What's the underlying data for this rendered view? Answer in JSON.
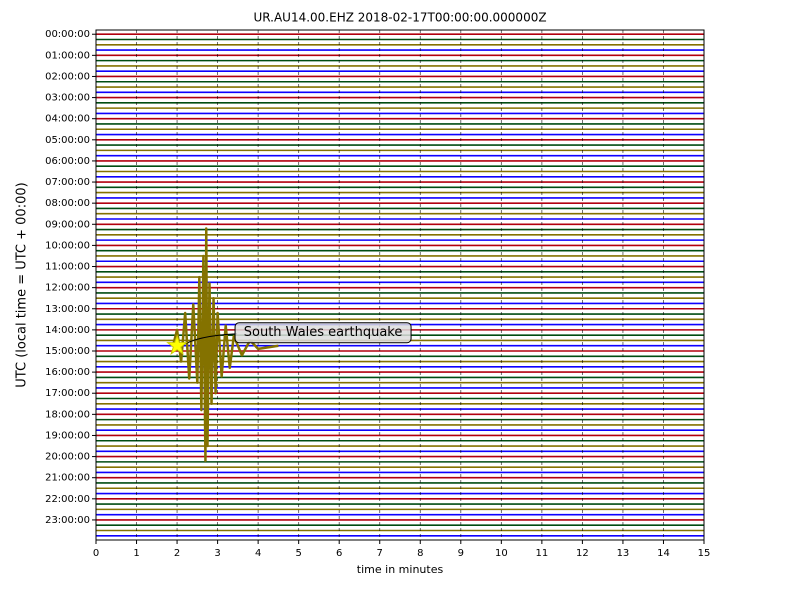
{
  "chart_data": {
    "type": "line",
    "title": "UR.AU14.00.EHZ  2018-02-17T00:00:00.000000Z",
    "xlabel": "time in minutes",
    "ylabel": "UTC (local time = UTC + 00:00)",
    "xlim": [
      0,
      15
    ],
    "xticks": [
      0,
      1,
      2,
      3,
      4,
      5,
      6,
      7,
      8,
      9,
      10,
      11,
      12,
      13,
      14,
      15
    ],
    "ylim": [
      -0.2,
      23.95
    ],
    "yticks": [
      {
        "value": 0,
        "label": "00:00:00"
      },
      {
        "value": 1,
        "label": "01:00:00"
      },
      {
        "value": 2,
        "label": "02:00:00"
      },
      {
        "value": 3,
        "label": "03:00:00"
      },
      {
        "value": 4,
        "label": "04:00:00"
      },
      {
        "value": 5,
        "label": "05:00:00"
      },
      {
        "value": 6,
        "label": "06:00:00"
      },
      {
        "value": 7,
        "label": "07:00:00"
      },
      {
        "value": 8,
        "label": "08:00:00"
      },
      {
        "value": 9,
        "label": "09:00:00"
      },
      {
        "value": 10,
        "label": "10:00:00"
      },
      {
        "value": 11,
        "label": "11:00:00"
      },
      {
        "value": 12,
        "label": "12:00:00"
      },
      {
        "value": 13,
        "label": "13:00:00"
      },
      {
        "value": 14,
        "label": "14:00:00"
      },
      {
        "value": 15,
        "label": "15:00:00"
      },
      {
        "value": 16,
        "label": "16:00:00"
      },
      {
        "value": 17,
        "label": "17:00:00"
      },
      {
        "value": 18,
        "label": "18:00:00"
      },
      {
        "value": 19,
        "label": "19:00:00"
      },
      {
        "value": 20,
        "label": "20:00:00"
      },
      {
        "value": 21,
        "label": "21:00:00"
      },
      {
        "value": 22,
        "label": "22:00:00"
      },
      {
        "value": 23,
        "label": "23:00:00"
      }
    ],
    "grid": true,
    "trace_colors": [
      "#B2000F",
      "#004C12",
      "#847200",
      "#0E01FF"
    ],
    "traces": [
      0,
      0.25,
      0.5,
      0.75,
      1,
      1.25,
      1.5,
      1.75,
      2,
      2.25,
      2.5,
      2.75,
      3,
      3.25,
      3.5,
      3.75,
      4,
      4.25,
      4.5,
      4.75,
      5,
      5.25,
      5.5,
      5.75,
      6,
      6.25,
      6.5,
      6.75,
      7,
      7.25,
      7.5,
      7.75,
      8,
      8.25,
      8.5,
      8.75,
      9,
      9.25,
      9.5,
      9.75,
      10,
      10.25,
      10.5,
      10.75,
      11,
      11.25,
      11.5,
      11.75,
      12,
      12.25,
      12.5,
      12.75,
      13,
      13.25,
      13.5,
      13.75,
      14,
      14.25,
      14.5,
      14.75,
      15,
      15.25,
      15.5,
      15.75,
      16,
      16.25,
      16.5,
      16.75,
      17,
      17.25,
      17.5,
      17.75,
      18,
      18.25,
      18.5,
      18.75,
      19,
      19.25,
      19.5,
      19.75,
      20,
      20.25,
      20.5,
      20.75,
      21,
      21.25,
      21.5,
      21.75,
      22,
      22.25,
      22.5,
      22.75,
      23,
      23.25,
      23.5,
      23.75
    ],
    "series": [
      {
        "color": "#847200",
        "x": [
          1.9,
          2.0,
          2.1,
          2.2,
          2.3,
          2.4,
          2.5,
          2.55,
          2.6,
          2.65,
          2.7,
          2.72,
          2.75,
          2.8,
          2.85,
          2.9,
          2.95,
          3.0,
          3.1,
          3.2,
          3.3,
          3.4,
          3.6,
          3.8,
          4.0,
          4.5
        ],
        "values": [
          14.75,
          14.0,
          15.5,
          13.2,
          16.3,
          12.8,
          16.5,
          11.5,
          17.8,
          10.5,
          20.2,
          9.2,
          19.5,
          11.8,
          17.5,
          12.5,
          17.0,
          13.2,
          16.2,
          13.8,
          15.8,
          14.3,
          15.2,
          14.5,
          14.9,
          14.75
        ]
      }
    ],
    "annotation": {
      "text": "South Wales earthquake",
      "x": 2,
      "y": 14.75
    }
  }
}
